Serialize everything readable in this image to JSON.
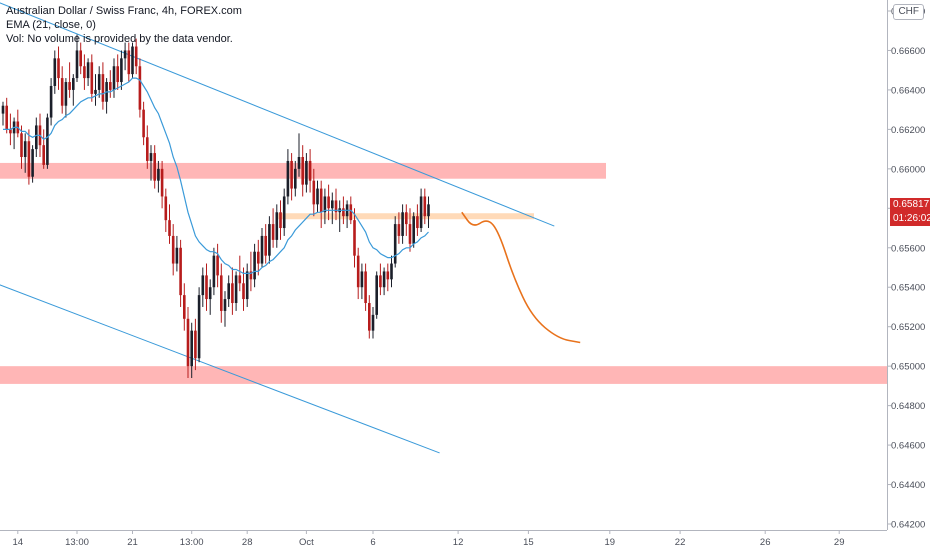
{
  "legend": {
    "title": "Australian Dollar / Swiss Franc, 4h, FOREX.com",
    "ema": "EMA (21, close, 0)",
    "vol": "Vol: No volume is provided by the data vendor."
  },
  "currency_badge": "CHF",
  "last_price_label": "0.65817",
  "countdown_label": "01:26:02",
  "colors": {
    "up": "#1b1f2a",
    "down": "#b71c1c",
    "ema": "#3a9ad9",
    "trendline": "#3a9ad9",
    "zone": "#ff9e9e",
    "orange_zone": "#ffd6b0",
    "projection": "#e8721c",
    "price_tag": "#d12a2a"
  },
  "chart_data": {
    "type": "candlestick",
    "title": "Australian Dollar / Swiss Franc, 4h, FOREX.com",
    "ylim": [
      0.642,
      0.6688
    ],
    "y_ticks": [
      "0.66800",
      "0.66600",
      "0.66400",
      "0.66200",
      "0.66000",
      "0.65800",
      "0.65600",
      "0.65400",
      "0.65200",
      "0.65000",
      "0.64800",
      "0.64600",
      "0.64400",
      "0.64200"
    ],
    "x_ticks": [
      "14",
      "13:00",
      "21",
      "13:00",
      "28",
      "Oct",
      "6",
      "12",
      "15",
      "19",
      "22",
      "26",
      "29"
    ],
    "x_tick_index": [
      4,
      20,
      35,
      51,
      66,
      82,
      100,
      123,
      142,
      164,
      183,
      206,
      226
    ],
    "last_price": 0.65817,
    "support_resistance_zones": [
      {
        "from": 0.6595,
        "to": 0.6603
      },
      {
        "from": 0.6491,
        "to": 0.65
      }
    ],
    "minor_zone": {
      "from": 0.65755,
      "to": 0.65775
    },
    "trendlines": [
      {
        "from": [
          -2,
          0.6685
        ],
        "to": [
          149,
          0.6571
        ]
      },
      {
        "from": [
          -2,
          0.6542
        ],
        "to": [
          118,
          0.6456
        ]
      }
    ],
    "projection": [
      [
        124,
        0.6578
      ],
      [
        127,
        0.657
      ],
      [
        131,
        0.6575
      ],
      [
        134,
        0.6568
      ],
      [
        138,
        0.6545
      ],
      [
        143,
        0.6525
      ],
      [
        150,
        0.6514
      ],
      [
        156,
        0.6512
      ]
    ],
    "candles": [
      [
        0.6628,
        0.6634,
        0.6622,
        0.6632
      ],
      [
        0.6632,
        0.6636,
        0.6618,
        0.662
      ],
      [
        0.662,
        0.6628,
        0.6612,
        0.6618
      ],
      [
        0.6618,
        0.6626,
        0.661,
        0.6624
      ],
      [
        0.6624,
        0.663,
        0.6616,
        0.6618
      ],
      [
        0.6618,
        0.6622,
        0.66,
        0.6606
      ],
      [
        0.6606,
        0.6618,
        0.6598,
        0.6614
      ],
      [
        0.6614,
        0.662,
        0.6592,
        0.6596
      ],
      [
        0.6596,
        0.6612,
        0.6593,
        0.661
      ],
      [
        0.661,
        0.6626,
        0.6606,
        0.6622
      ],
      [
        0.6622,
        0.6628,
        0.6606,
        0.6612
      ],
      [
        0.6612,
        0.662,
        0.66,
        0.6602
      ],
      [
        0.6602,
        0.6628,
        0.66,
        0.6626
      ],
      [
        0.6626,
        0.6646,
        0.6622,
        0.6642
      ],
      [
        0.6642,
        0.666,
        0.6638,
        0.6656
      ],
      [
        0.6656,
        0.6662,
        0.664,
        0.6646
      ],
      [
        0.6646,
        0.6652,
        0.6628,
        0.6632
      ],
      [
        0.6632,
        0.6646,
        0.6626,
        0.6644
      ],
      [
        0.6644,
        0.6654,
        0.6636,
        0.664
      ],
      [
        0.664,
        0.6648,
        0.6632,
        0.6646
      ],
      [
        0.6646,
        0.6668,
        0.6644,
        0.666
      ],
      [
        0.666,
        0.6664,
        0.6648,
        0.6652
      ],
      [
        0.6652,
        0.6658,
        0.664,
        0.6646
      ],
      [
        0.6646,
        0.6656,
        0.6642,
        0.6654
      ],
      [
        0.6654,
        0.6658,
        0.6634,
        0.6638
      ],
      [
        0.6638,
        0.6648,
        0.6632,
        0.664
      ],
      [
        0.664,
        0.6652,
        0.6636,
        0.6648
      ],
      [
        0.6648,
        0.6654,
        0.663,
        0.6634
      ],
      [
        0.6634,
        0.6646,
        0.6628,
        0.6644
      ],
      [
        0.6644,
        0.665,
        0.6636,
        0.664
      ],
      [
        0.664,
        0.6656,
        0.6636,
        0.6652
      ],
      [
        0.6652,
        0.6658,
        0.664,
        0.6644
      ],
      [
        0.6644,
        0.666,
        0.664,
        0.6656
      ],
      [
        0.6656,
        0.6664,
        0.665,
        0.666
      ],
      [
        0.666,
        0.6664,
        0.6644,
        0.6648
      ],
      [
        0.6648,
        0.6664,
        0.6646,
        0.6662
      ],
      [
        0.6662,
        0.6666,
        0.6648,
        0.6652
      ],
      [
        0.6652,
        0.6656,
        0.6626,
        0.663
      ],
      [
        0.663,
        0.6634,
        0.6612,
        0.6616
      ],
      [
        0.6616,
        0.6622,
        0.66,
        0.6604
      ],
      [
        0.6604,
        0.6612,
        0.6594,
        0.6608
      ],
      [
        0.6608,
        0.6612,
        0.659,
        0.6594
      ],
      [
        0.6594,
        0.6604,
        0.6588,
        0.66
      ],
      [
        0.66,
        0.6604,
        0.658,
        0.6586
      ],
      [
        0.6586,
        0.659,
        0.6568,
        0.6574
      ],
      [
        0.6574,
        0.6582,
        0.6562,
        0.6566
      ],
      [
        0.6566,
        0.6572,
        0.6546,
        0.6552
      ],
      [
        0.6552,
        0.6566,
        0.6548,
        0.656
      ],
      [
        0.656,
        0.6564,
        0.653,
        0.6536
      ],
      [
        0.6536,
        0.6542,
        0.6518,
        0.6524
      ],
      [
        0.6524,
        0.653,
        0.6494,
        0.65
      ],
      [
        0.65,
        0.6522,
        0.6494,
        0.6518
      ],
      [
        0.6518,
        0.6524,
        0.6498,
        0.6504
      ],
      [
        0.6504,
        0.654,
        0.6502,
        0.6536
      ],
      [
        0.6536,
        0.655,
        0.653,
        0.6546
      ],
      [
        0.6546,
        0.6552,
        0.6528,
        0.6534
      ],
      [
        0.6534,
        0.6544,
        0.6526,
        0.654
      ],
      [
        0.654,
        0.656,
        0.6536,
        0.6556
      ],
      [
        0.6556,
        0.6562,
        0.654,
        0.6546
      ],
      [
        0.6546,
        0.6552,
        0.6522,
        0.6528
      ],
      [
        0.6528,
        0.6538,
        0.652,
        0.6534
      ],
      [
        0.6534,
        0.6546,
        0.653,
        0.6542
      ],
      [
        0.6542,
        0.655,
        0.6526,
        0.6532
      ],
      [
        0.6532,
        0.6548,
        0.6528,
        0.6546
      ],
      [
        0.6546,
        0.6556,
        0.6538,
        0.6542
      ],
      [
        0.6542,
        0.655,
        0.6528,
        0.6534
      ],
      [
        0.6534,
        0.6552,
        0.653,
        0.6548
      ],
      [
        0.6548,
        0.6558,
        0.6538,
        0.6544
      ],
      [
        0.6544,
        0.6562,
        0.654,
        0.6558
      ],
      [
        0.6558,
        0.6564,
        0.6546,
        0.6552
      ],
      [
        0.6552,
        0.657,
        0.655,
        0.6566
      ],
      [
        0.6566,
        0.6572,
        0.6552,
        0.6556
      ],
      [
        0.6556,
        0.6576,
        0.6552,
        0.6572
      ],
      [
        0.6572,
        0.658,
        0.656,
        0.6564
      ],
      [
        0.6564,
        0.6582,
        0.656,
        0.6578
      ],
      [
        0.6578,
        0.6584,
        0.6564,
        0.657
      ],
      [
        0.657,
        0.659,
        0.6566,
        0.6586
      ],
      [
        0.6586,
        0.661,
        0.6582,
        0.6604
      ],
      [
        0.6604,
        0.6608,
        0.6584,
        0.659
      ],
      [
        0.659,
        0.6604,
        0.6586,
        0.66
      ],
      [
        0.66,
        0.6618,
        0.6596,
        0.6606
      ],
      [
        0.6606,
        0.6612,
        0.6586,
        0.6592
      ],
      [
        0.6592,
        0.6608,
        0.6588,
        0.6604
      ],
      [
        0.6604,
        0.661,
        0.6588,
        0.6594
      ],
      [
        0.6594,
        0.66,
        0.6576,
        0.6582
      ],
      [
        0.6582,
        0.6594,
        0.6578,
        0.659
      ],
      [
        0.659,
        0.6594,
        0.657,
        0.6578
      ],
      [
        0.6578,
        0.659,
        0.6572,
        0.6586
      ],
      [
        0.6586,
        0.6592,
        0.6574,
        0.658
      ],
      [
        0.658,
        0.6588,
        0.6572,
        0.6584
      ],
      [
        0.6584,
        0.659,
        0.6574,
        0.6578
      ],
      [
        0.6578,
        0.6584,
        0.6568,
        0.658
      ],
      [
        0.658,
        0.6586,
        0.6572,
        0.6576
      ],
      [
        0.6576,
        0.6584,
        0.657,
        0.6582
      ],
      [
        0.6582,
        0.6586,
        0.6572,
        0.6574
      ],
      [
        0.6574,
        0.658,
        0.655,
        0.6556
      ],
      [
        0.6556,
        0.656,
        0.6534,
        0.654
      ],
      [
        0.654,
        0.6552,
        0.6534,
        0.6548
      ],
      [
        0.6548,
        0.6552,
        0.6528,
        0.6532
      ],
      [
        0.6532,
        0.6536,
        0.6514,
        0.6518
      ],
      [
        0.6518,
        0.653,
        0.6514,
        0.6526
      ],
      [
        0.6526,
        0.6548,
        0.6524,
        0.6546
      ],
      [
        0.6546,
        0.6552,
        0.6536,
        0.654
      ],
      [
        0.654,
        0.655,
        0.6536,
        0.6548
      ],
      [
        0.6548,
        0.6552,
        0.6538,
        0.6544
      ],
      [
        0.6544,
        0.6556,
        0.654,
        0.6552
      ],
      [
        0.6552,
        0.6576,
        0.655,
        0.6572
      ],
      [
        0.6572,
        0.6578,
        0.6562,
        0.6566
      ],
      [
        0.6566,
        0.6582,
        0.6562,
        0.6578
      ],
      [
        0.6578,
        0.6582,
        0.6566,
        0.6572
      ],
      [
        0.6572,
        0.658,
        0.6558,
        0.6562
      ],
      [
        0.6562,
        0.6578,
        0.656,
        0.6576
      ],
      [
        0.6576,
        0.6582,
        0.6566,
        0.657
      ],
      [
        0.657,
        0.659,
        0.6568,
        0.6586
      ],
      [
        0.6586,
        0.659,
        0.6572,
        0.6576
      ],
      [
        0.6576,
        0.6586,
        0.657,
        0.6582
      ]
    ],
    "ema": [
      0.662,
      0.662,
      0.662,
      0.6621,
      0.6621,
      0.6619,
      0.6619,
      0.6617,
      0.6616,
      0.6617,
      0.6617,
      0.6615,
      0.6616,
      0.6618,
      0.6622,
      0.6624,
      0.6625,
      0.6627,
      0.6628,
      0.663,
      0.6632,
      0.6634,
      0.6635,
      0.6636,
      0.6636,
      0.6637,
      0.6638,
      0.6638,
      0.6639,
      0.6639,
      0.664,
      0.6641,
      0.6642,
      0.6643,
      0.6644,
      0.6646,
      0.6646,
      0.6645,
      0.6642,
      0.6639,
      0.6635,
      0.6631,
      0.6628,
      0.6623,
      0.6618,
      0.6613,
      0.6606,
      0.6601,
      0.6594,
      0.6586,
      0.6578,
      0.6572,
      0.6566,
      0.6563,
      0.6561,
      0.6559,
      0.6558,
      0.6558,
      0.6557,
      0.6554,
      0.6552,
      0.6551,
      0.6549,
      0.6549,
      0.6548,
      0.6547,
      0.6547,
      0.6547,
      0.6548,
      0.6548,
      0.655,
      0.6551,
      0.6553,
      0.6554,
      0.6556,
      0.6558,
      0.656,
      0.6564,
      0.6566,
      0.6569,
      0.6571,
      0.6573,
      0.6575,
      0.6577,
      0.6577,
      0.6578,
      0.6578,
      0.6579,
      0.6579,
      0.6579,
      0.6579,
      0.6579,
      0.6579,
      0.6579,
      0.6579,
      0.6577,
      0.6574,
      0.6571,
      0.6568,
      0.6563,
      0.656,
      0.6559,
      0.6557,
      0.6556,
      0.6555,
      0.6555,
      0.6556,
      0.6557,
      0.6559,
      0.656,
      0.656,
      0.6562,
      0.6563,
      0.6565,
      0.6566,
      0.6568
    ]
  }
}
